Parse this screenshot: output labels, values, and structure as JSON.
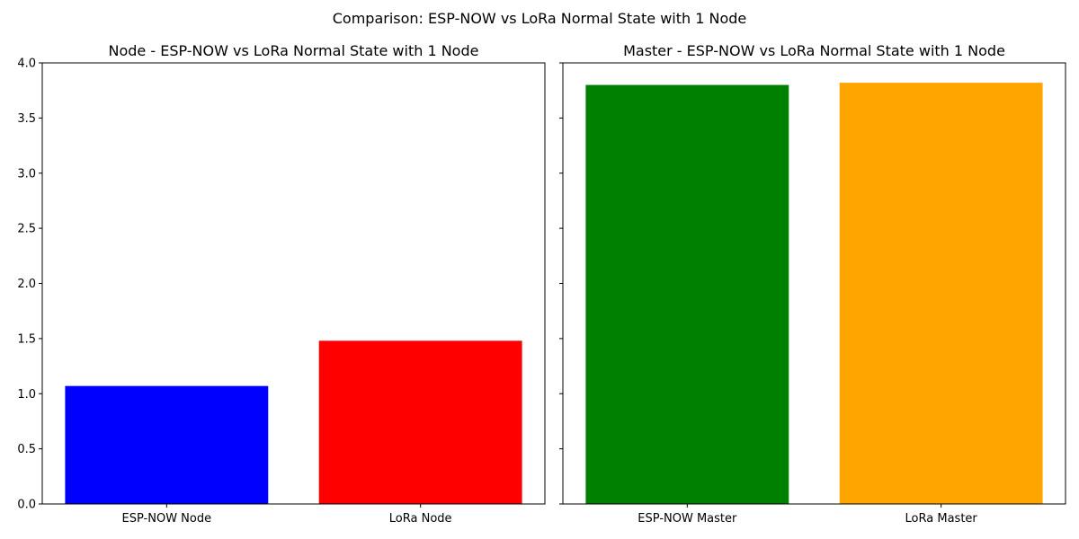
{
  "figure_title": "Comparison: ESP-NOW vs LoRa Normal State with 1 Node",
  "chart_data": [
    {
      "type": "bar",
      "title": "Node - ESP-NOW vs LoRa Normal State with 1 Node",
      "xlabel": "",
      "ylabel": "",
      "categories": [
        "ESP-NOW Node",
        "LoRa Node"
      ],
      "values": [
        1.07,
        1.48
      ],
      "colors": [
        "#0000ff",
        "#ff0000"
      ],
      "ylim": [
        0,
        4.0
      ],
      "yticks": [
        0.0,
        0.5,
        1.0,
        1.5,
        2.0,
        2.5,
        3.0,
        3.5,
        4.0
      ],
      "ytick_labels": [
        "0.0",
        "0.5",
        "1.0",
        "1.5",
        "2.0",
        "2.5",
        "3.0",
        "3.5",
        "4.0"
      ],
      "grid": false
    },
    {
      "type": "bar",
      "title": "Master - ESP-NOW vs LoRa Normal State with 1 Node",
      "xlabel": "",
      "ylabel": "",
      "categories": [
        "ESP-NOW Master",
        "LoRa Master"
      ],
      "values": [
        3.8,
        3.82
      ],
      "colors": [
        "#008000",
        "#ffa500"
      ],
      "ylim": [
        0,
        4.0
      ],
      "yticks": [
        0.0,
        0.5,
        1.0,
        1.5,
        2.0,
        2.5,
        3.0,
        3.5,
        4.0
      ],
      "ytick_labels": [],
      "grid": false
    }
  ]
}
